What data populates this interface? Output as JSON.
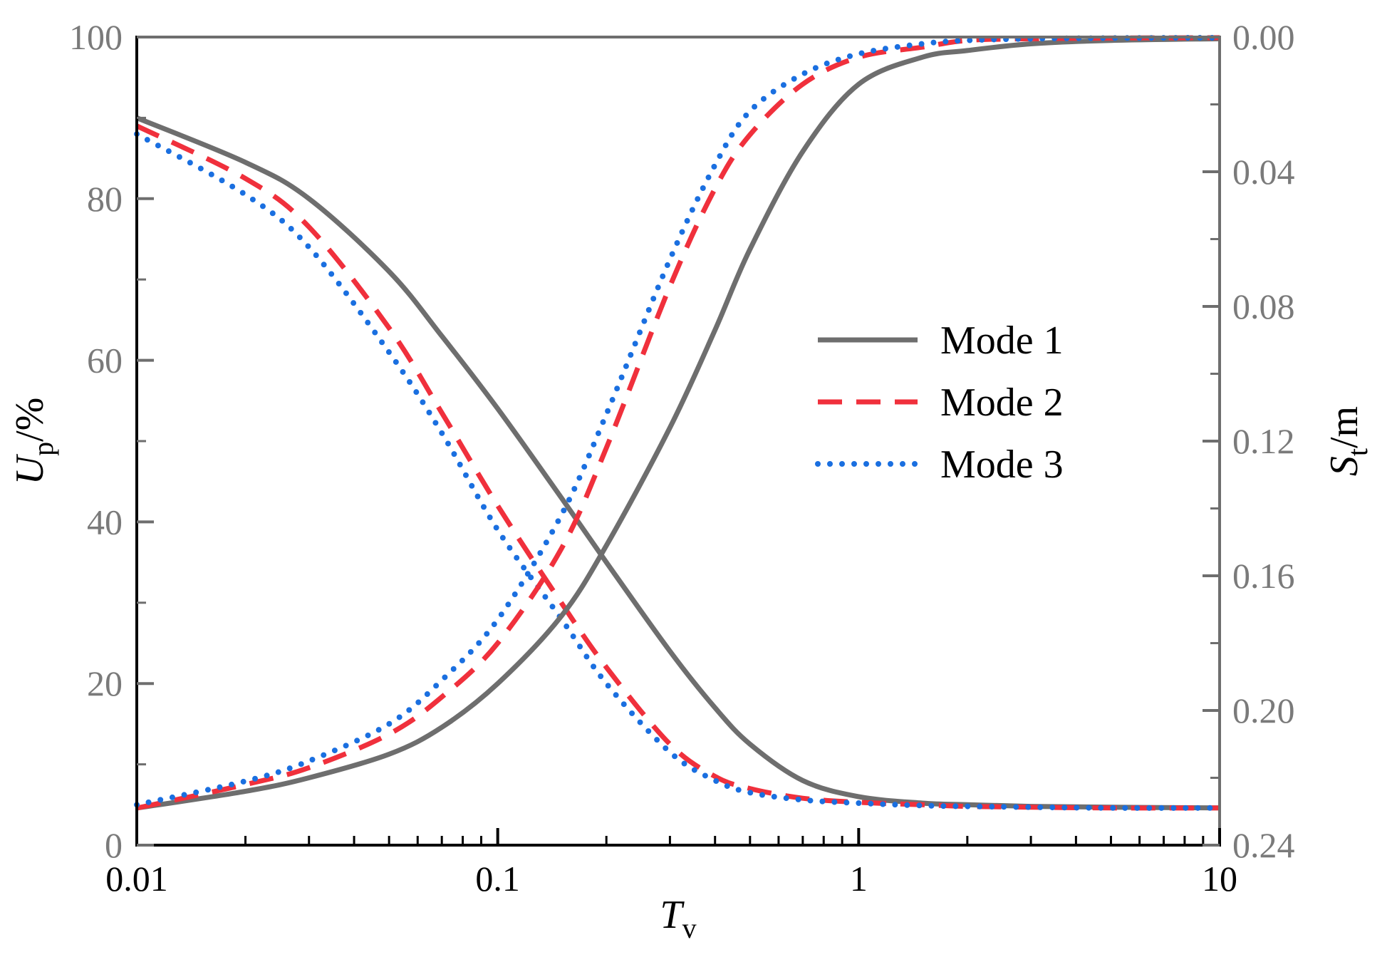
{
  "chart_data": {
    "type": "line",
    "x_scale": "log",
    "xlim": [
      0.01,
      10
    ],
    "ylim_left": [
      0,
      100
    ],
    "ylim_right": [
      0,
      0.24
    ],
    "right_axis_inverted": true,
    "x_ticks": [
      "0.01",
      "0.1",
      "1",
      "10"
    ],
    "y_left_ticks": [
      "0",
      "20",
      "40",
      "60",
      "80",
      "100"
    ],
    "y_right_ticks": [
      "0.24",
      "0.20",
      "0.16",
      "0.12",
      "0.08",
      "0.04",
      "0.00"
    ],
    "xlabel": {
      "main": "T",
      "sub": "v"
    },
    "ylabel_left": {
      "main": "U",
      "sub": "p",
      "suffix": "/%"
    },
    "ylabel_right": {
      "main": "S",
      "sub": "t",
      "suffix": "/m"
    },
    "legend": [
      "Mode 1",
      "Mode 2",
      "Mode 3"
    ],
    "legend_position": "center-right",
    "grid": false,
    "series": [
      {
        "name": "Mode 1",
        "axis": "left",
        "color": "#6e6e6e",
        "style": "solid",
        "x": [
          0.01,
          0.02,
          0.03,
          0.05,
          0.07,
          0.1,
          0.15,
          0.2,
          0.3,
          0.4,
          0.5,
          0.7,
          1,
          1.5,
          2,
          3,
          5,
          10
        ],
        "y": [
          90,
          84.5,
          80,
          71,
          63,
          54,
          43,
          35,
          24,
          17,
          12.5,
          8,
          6,
          5.2,
          5,
          4.8,
          4.7,
          4.6
        ]
      },
      {
        "name": "Mode 2",
        "axis": "left",
        "color": "#f0303c",
        "style": "dashed",
        "x": [
          0.01,
          0.02,
          0.03,
          0.05,
          0.07,
          0.1,
          0.15,
          0.2,
          0.3,
          0.4,
          0.5,
          0.7,
          1,
          1.5,
          2,
          3,
          5,
          10
        ],
        "y": [
          89,
          82.5,
          76.5,
          64,
          53.5,
          42,
          30,
          22,
          12.5,
          8.5,
          7,
          5.8,
          5.3,
          5,
          4.8,
          4.7,
          4.6,
          4.6
        ]
      },
      {
        "name": "Mode 3",
        "axis": "left",
        "color": "#1a6fe0",
        "style": "dotted",
        "x": [
          0.01,
          0.02,
          0.03,
          0.05,
          0.07,
          0.1,
          0.15,
          0.2,
          0.3,
          0.4,
          0.5,
          0.7,
          1,
          1.5,
          2,
          3,
          5,
          10
        ],
        "y": [
          88,
          80.5,
          74,
          61,
          51,
          39,
          28,
          20,
          11.5,
          8,
          6.5,
          5.6,
          5.2,
          4.9,
          4.8,
          4.7,
          4.6,
          4.6
        ]
      },
      {
        "name": "Mode 1",
        "axis": "right",
        "color": "#6e6e6e",
        "style": "solid",
        "x": [
          0.01,
          0.02,
          0.03,
          0.05,
          0.07,
          0.1,
          0.15,
          0.2,
          0.3,
          0.4,
          0.5,
          0.7,
          1,
          1.5,
          2,
          3,
          5,
          10
        ],
        "y": [
          0.229,
          0.224,
          0.22,
          0.213,
          0.205,
          0.192,
          0.172,
          0.151,
          0.116,
          0.087,
          0.063,
          0.034,
          0.014,
          0.006,
          0.004,
          0.002,
          0.001,
          0.0005
        ]
      },
      {
        "name": "Mode 2",
        "axis": "right",
        "color": "#f0303c",
        "style": "dashed",
        "x": [
          0.01,
          0.02,
          0.03,
          0.05,
          0.07,
          0.1,
          0.15,
          0.2,
          0.3,
          0.4,
          0.5,
          0.7,
          1,
          1.5,
          2,
          3,
          5,
          10
        ],
        "y": [
          0.229,
          0.222,
          0.217,
          0.207,
          0.196,
          0.18,
          0.152,
          0.122,
          0.074,
          0.045,
          0.029,
          0.014,
          0.006,
          0.003,
          0.001,
          0.0005,
          0.0003,
          0.0002
        ]
      },
      {
        "name": "Mode 3",
        "axis": "right",
        "color": "#1a6fe0",
        "style": "dotted",
        "x": [
          0.01,
          0.02,
          0.03,
          0.05,
          0.07,
          0.1,
          0.15,
          0.2,
          0.3,
          0.4,
          0.5,
          0.7,
          1,
          1.5,
          2,
          3,
          5,
          10
        ],
        "y": [
          0.228,
          0.221,
          0.215,
          0.204,
          0.191,
          0.173,
          0.142,
          0.112,
          0.066,
          0.038,
          0.022,
          0.011,
          0.005,
          0.002,
          0.001,
          0.0005,
          0.0003,
          0.0002
        ]
      }
    ]
  }
}
